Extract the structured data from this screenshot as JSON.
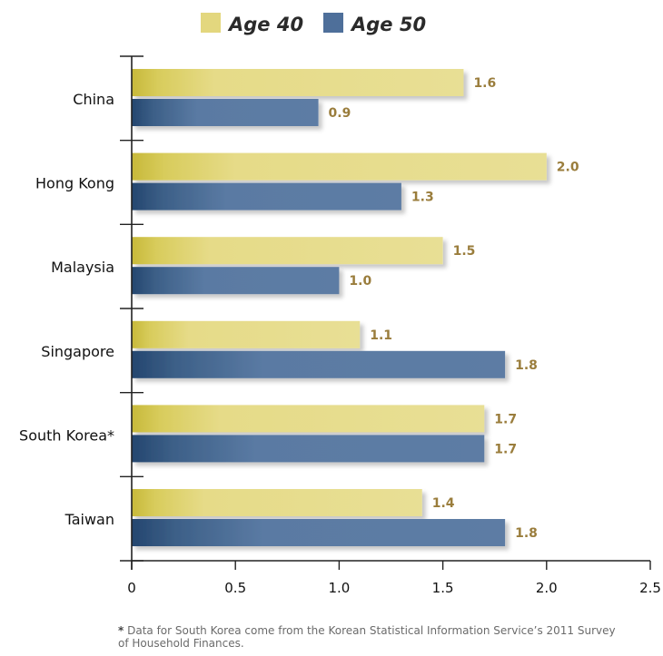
{
  "chart_data": {
    "type": "bar",
    "orientation": "horizontal",
    "categories": [
      "China",
      "Hong Kong",
      "Malaysia",
      "Singapore",
      "South Korea*",
      "Taiwan"
    ],
    "series": [
      {
        "name": "Age 40",
        "color": "#e3d77e",
        "values": [
          1.6,
          2.0,
          1.5,
          1.1,
          1.7,
          1.4
        ]
      },
      {
        "name": "Age 50",
        "color": "#4e6f9a",
        "values": [
          0.9,
          1.3,
          1.0,
          1.8,
          1.7,
          1.8
        ]
      }
    ],
    "x_ticks": [
      "0",
      "0.5",
      "1.0",
      "1.5",
      "2.0",
      "2.5"
    ],
    "xlim": [
      0,
      2.5
    ],
    "value_labels": [
      [
        "1.6",
        "0.9"
      ],
      [
        "2.0",
        "1.3"
      ],
      [
        "1.5",
        "1.0"
      ],
      [
        "1.1",
        "1.8"
      ],
      [
        "1.7",
        "1.7"
      ],
      [
        "1.4",
        "1.8"
      ]
    ],
    "legend_position": "top",
    "grid": false
  },
  "footnote": {
    "marker": "*",
    "text": " Data for South Korea come from the Korean Statistical Information Service’s 2011 Survey of Household Finances."
  }
}
